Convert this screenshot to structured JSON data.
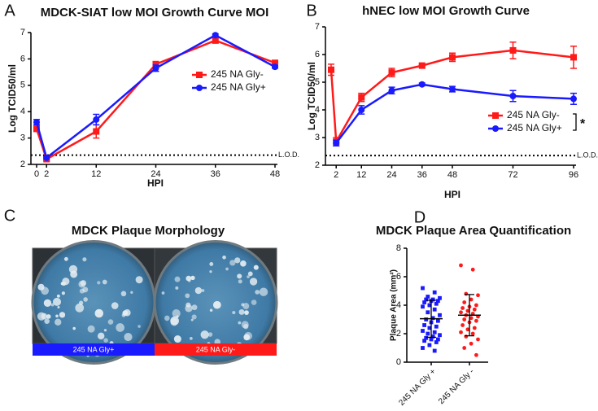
{
  "chart_data": [
    {
      "type": "line",
      "label": "A",
      "title": "MDCK-SIAT low MOI Growth Curve MOI",
      "ylabel": "Log TCID50/ml",
      "xlabel": "HPI",
      "x": [
        0,
        2,
        12,
        24,
        36,
        48
      ],
      "xlim": [
        0,
        48
      ],
      "xticks": [
        0,
        2,
        12,
        24,
        36,
        48
      ],
      "ylim": [
        2,
        7
      ],
      "yticks": [
        2,
        3,
        4,
        5,
        6,
        7
      ],
      "lod": {
        "value": 2.35,
        "label": "L.O.D."
      },
      "series": [
        {
          "name": "245 NA Gly-",
          "color": "#ff1a1a",
          "marker": "square",
          "values": [
            3.35,
            2.2,
            3.25,
            5.8,
            6.7,
            5.85
          ],
          "errors": [
            0.1,
            0.05,
            0.25,
            0.1,
            0.1,
            0.08
          ]
        },
        {
          "name": "245 NA Gly+",
          "color": "#1a1aff",
          "marker": "circle",
          "values": [
            3.6,
            2.25,
            3.7,
            5.65,
            6.9,
            5.7
          ],
          "errors": [
            0.1,
            0.05,
            0.2,
            0.12,
            0.05,
            0.05
          ]
        }
      ]
    },
    {
      "type": "line",
      "label": "B",
      "title": "hNEC low MOI Growth Curve",
      "ylabel": "Log TCID50/ml",
      "xlabel": "HPI",
      "x": [
        0,
        2,
        12,
        24,
        36,
        48,
        72,
        96
      ],
      "xlim": [
        0,
        96
      ],
      "xticks": [
        2,
        12,
        24,
        36,
        48,
        72,
        96
      ],
      "ylim": [
        2,
        7
      ],
      "yticks": [
        2,
        3,
        4,
        5,
        6,
        7
      ],
      "lod": {
        "value": 2.35,
        "label": "L.O.D."
      },
      "annotation": "*",
      "series": [
        {
          "name": "245 NA Gly-",
          "color": "#ff1a1a",
          "marker": "square",
          "values": [
            5.45,
            2.85,
            4.45,
            5.35,
            5.6,
            5.9,
            6.15,
            5.9
          ],
          "errors": [
            0.2,
            0.15,
            0.15,
            0.15,
            0.05,
            0.15,
            0.3,
            0.4
          ]
        },
        {
          "name": "245 NA Gly+",
          "color": "#1a1aff",
          "marker": "circle",
          "values": [
            null,
            2.8,
            4.0,
            4.7,
            4.92,
            4.75,
            4.5,
            4.4
          ],
          "errors": [
            null,
            0.1,
            0.15,
            0.12,
            0.05,
            0.1,
            0.2,
            0.2
          ]
        }
      ]
    },
    {
      "type": "image",
      "label": "C",
      "title": "MDCK Plaque Morphology",
      "panels": [
        {
          "name": "245 NA Gly+",
          "color": "#1a1aff"
        },
        {
          "name": "245 NA Gly-",
          "color": "#ff1a1a"
        }
      ]
    },
    {
      "type": "dot",
      "label": "D",
      "title": "MDCK Plaque Area Quantification",
      "ylabel": "Plaque Area (mm²)",
      "ylim": [
        0,
        8
      ],
      "yticks": [
        0,
        2,
        4,
        6,
        8
      ],
      "series": [
        {
          "name": "245 NA Gly +",
          "color": "#1a1aff",
          "marker": "square",
          "mean": 3.05,
          "sd": 1.3,
          "values": [
            5.2,
            4.9,
            4.6,
            4.5,
            4.4,
            4.4,
            4.3,
            4.3,
            4.2,
            4.1,
            4.0,
            3.9,
            3.7,
            3.5,
            3.3,
            3.1,
            3.0,
            2.9,
            2.8,
            2.6,
            2.5,
            2.4,
            2.2,
            2.1,
            2.0,
            1.9,
            1.8,
            1.7,
            1.6,
            1.6,
            1.5,
            1.4,
            1.2,
            1.0,
            0.8
          ]
        },
        {
          "name": "245 NA Gly -",
          "color": "#ff1a1a",
          "marker": "circle",
          "mean": 3.3,
          "sd": 1.45,
          "values": [
            6.8,
            6.5,
            4.8,
            4.7,
            4.4,
            4.2,
            4.0,
            3.9,
            3.8,
            3.7,
            3.6,
            3.5,
            3.4,
            3.3,
            3.2,
            3.1,
            3.0,
            2.9,
            2.8,
            2.6,
            2.4,
            2.3,
            2.1,
            2.0,
            1.8,
            1.6,
            1.3,
            1.0,
            0.5
          ]
        }
      ]
    }
  ]
}
